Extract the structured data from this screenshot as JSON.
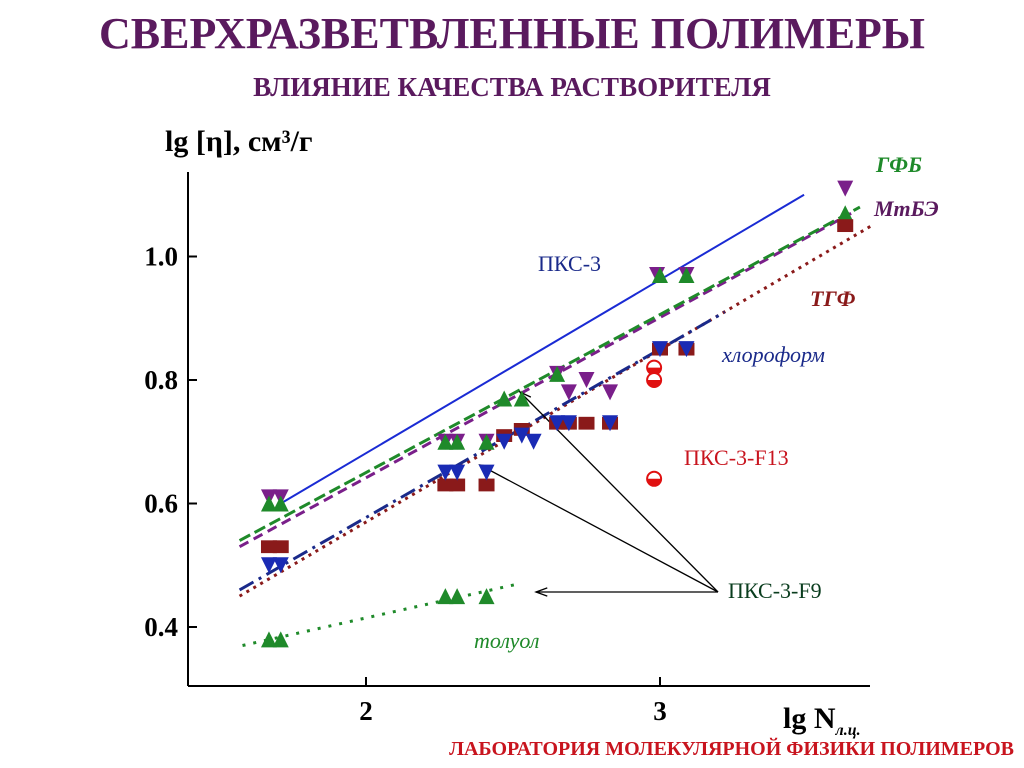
{
  "header": {
    "title": "СВЕРХРАЗВЕТВЛЕННЫЕ ПОЛИМЕРЫ",
    "subtitle": "ВЛИЯНИЕ КАЧЕСТВА РАСТВОРИТЕЛЯ"
  },
  "footer": "ЛАБОРАТОРИЯ МОЛЕКУЛЯРНОЙ ФИЗИКИ ПОЛИМЕРОВ",
  "chart_data": {
    "type": "scatter",
    "ylabel": "lg [η], см³/г",
    "xlabel": "lg N",
    "xlabel_sub": "л.ц.",
    "xlim": [
      1.4,
      3.7
    ],
    "ylim": [
      0.3,
      1.2
    ],
    "xticks": [
      2,
      3
    ],
    "yticks": [
      0.4,
      0.6,
      0.8,
      1.0
    ],
    "ytick_labels": [
      "0.4",
      "0.6",
      "0.8",
      "1.0"
    ],
    "xtick_labels": [
      "2",
      "3"
    ],
    "annotations": {
      "pks3": "ПКС-3",
      "pks3_f13": "ПКС-3-F13",
      "pks3_f9": "ПКС-3-F9",
      "gfb": "ГФБ",
      "mtbe": "МтБЭ",
      "tgf": "ТГФ",
      "chloroform": "хлороформ",
      "toluene": "толуол"
    },
    "lines": [
      {
        "key": "pks3_ref",
        "color": "#1a2bd4",
        "dash": "",
        "x": [
          1.71,
          3.49
        ],
        "y": [
          0.6,
          1.1
        ]
      },
      {
        "key": "gfb",
        "color": "#7a1f8a",
        "dash": "10,6",
        "x": [
          1.57,
          3.65
        ],
        "y": [
          0.53,
          1.07
        ]
      },
      {
        "key": "mtbe",
        "color": "#1f8a2a",
        "dash": "12,5",
        "x": [
          1.57,
          3.68
        ],
        "y": [
          0.54,
          1.08
        ]
      },
      {
        "key": "tgf",
        "color": "#8a1a1a",
        "dash": "3,5",
        "x": [
          1.57,
          3.72
        ],
        "y": [
          0.45,
          1.05
        ]
      },
      {
        "key": "chloroform",
        "color": "#1a2a8a",
        "dash": "16,6,3,6",
        "x": [
          1.57,
          3.22
        ],
        "y": [
          0.46,
          0.91
        ]
      },
      {
        "key": "toluene",
        "color": "#1f8a2a",
        "dash": "3,8",
        "x": [
          1.58,
          2.52
        ],
        "y": [
          0.37,
          0.47
        ]
      }
    ],
    "series": [
      {
        "name": "ГФБ",
        "marker": "triangle-down",
        "color": "#7a1f8a",
        "x": [
          1.67,
          1.71,
          2.27,
          2.31,
          2.41,
          2.65,
          2.69,
          2.75,
          2.83,
          2.99,
          3.09,
          3.63
        ],
        "y": [
          0.61,
          0.61,
          0.7,
          0.7,
          0.7,
          0.81,
          0.78,
          0.8,
          0.78,
          0.97,
          0.97,
          1.11
        ]
      },
      {
        "name": "МтБЭ",
        "marker": "triangle-up",
        "color": "#1f8a2a",
        "x": [
          1.67,
          1.71,
          2.27,
          2.31,
          2.41,
          2.47,
          2.53,
          2.65,
          3.0,
          3.09,
          3.63
        ],
        "y": [
          0.6,
          0.6,
          0.7,
          0.7,
          0.7,
          0.77,
          0.77,
          0.81,
          0.97,
          0.97,
          1.07
        ]
      },
      {
        "name": "ТГФ",
        "marker": "square",
        "color": "#8a1a1a",
        "x": [
          1.67,
          1.71,
          2.27,
          2.31,
          2.41,
          2.47,
          2.53,
          2.65,
          2.69,
          2.75,
          2.83,
          3.0,
          3.09,
          3.63
        ],
        "y": [
          0.53,
          0.53,
          0.63,
          0.63,
          0.63,
          0.71,
          0.72,
          0.73,
          0.73,
          0.73,
          0.73,
          0.85,
          0.85,
          1.05
        ]
      },
      {
        "name": "хлороформ",
        "marker": "triangle-down",
        "color": "#1a2bb4",
        "x": [
          1.67,
          1.71,
          2.27,
          2.31,
          2.41,
          2.47,
          2.53,
          2.57,
          2.65,
          2.69,
          2.83,
          3.0,
          3.09
        ],
        "y": [
          0.5,
          0.5,
          0.65,
          0.65,
          0.65,
          0.7,
          0.71,
          0.7,
          0.73,
          0.73,
          0.73,
          0.85,
          0.85
        ]
      },
      {
        "name": "толуол",
        "marker": "triangle-up",
        "color": "#1f8a2a",
        "x": [
          1.67,
          1.71,
          2.27,
          2.31,
          2.41
        ],
        "y": [
          0.38,
          0.38,
          0.45,
          0.45,
          0.45
        ]
      },
      {
        "name": "ПКС-3-F13",
        "marker": "circle-half",
        "color": "#e01010",
        "x": [
          2.98,
          2.98,
          2.98
        ],
        "y": [
          0.82,
          0.8,
          0.64
        ]
      }
    ]
  }
}
